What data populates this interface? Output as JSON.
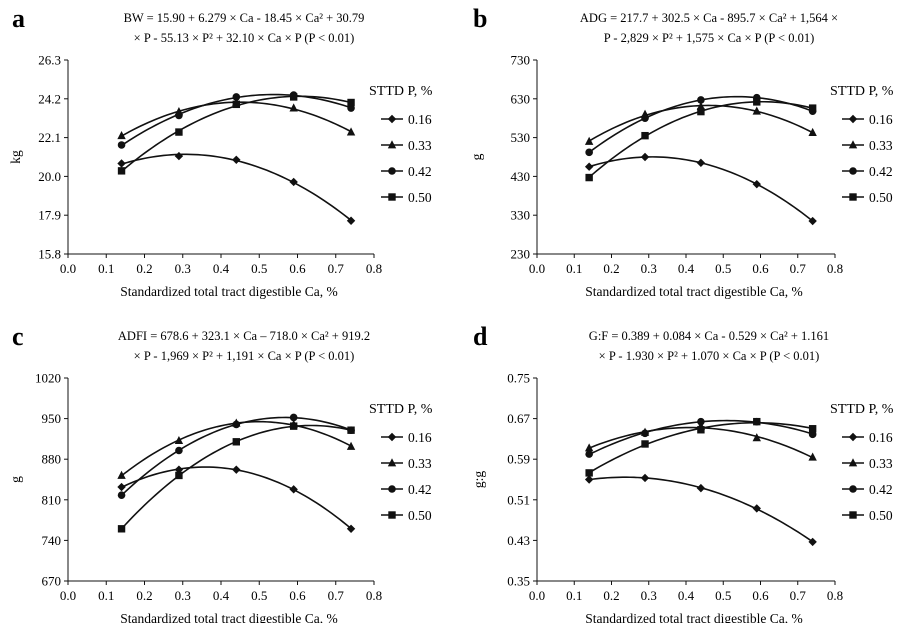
{
  "chart_data": [
    {
      "type": "scatter",
      "panel": "a",
      "equation": {
        "line1": "BW = 15.90 + 6.279 × Ca - 18.45 × Ca² + 30.79",
        "line2": "× P - 55.13 × P² + 32.10 × Ca × P (P < 0.01)"
      },
      "ylabel": "kg",
      "xlabel": "Standardized total tract digestible Ca, %",
      "xlim": [
        0.0,
        0.8
      ],
      "ylim": [
        15.8,
        26.3
      ],
      "xticks": [
        "0.0",
        "0.1",
        "0.2",
        "0.3",
        "0.4",
        "0.5",
        "0.6",
        "0.7",
        "0.8"
      ],
      "yticks": [
        "15.8",
        "17.9",
        "20.0",
        "22.1",
        "24.2",
        "26.3"
      ],
      "legend_title": "STTD P, %",
      "x": [
        0.14,
        0.29,
        0.44,
        0.59,
        0.74
      ],
      "series": [
        {
          "name": "0.16",
          "marker": "diamond",
          "values": [
            20.7,
            21.1,
            20.9,
            19.7,
            17.6
          ]
        },
        {
          "name": "0.33",
          "marker": "triangle",
          "values": [
            22.2,
            23.5,
            24.0,
            23.7,
            22.4
          ]
        },
        {
          "name": "0.42",
          "marker": "circle",
          "values": [
            21.7,
            23.3,
            24.3,
            24.4,
            23.7
          ]
        },
        {
          "name": "0.50",
          "marker": "square",
          "values": [
            20.3,
            22.4,
            23.9,
            24.3,
            24.0
          ]
        }
      ]
    },
    {
      "type": "scatter",
      "panel": "b",
      "equation": {
        "line1": "ADG = 217.7 + 302.5 × Ca - 895.7 × Ca² + 1,564 ×",
        "line2": "P - 2,829 × P² + 1,575 × Ca × P (P < 0.01)"
      },
      "ylabel": "g",
      "xlabel": "Standardized total tract digestible Ca, %",
      "xlim": [
        0.0,
        0.8
      ],
      "ylim": [
        230,
        730
      ],
      "xticks": [
        "0.0",
        "0.1",
        "0.2",
        "0.3",
        "0.4",
        "0.5",
        "0.6",
        "0.7",
        "0.8"
      ],
      "yticks": [
        "230",
        "330",
        "430",
        "530",
        "630",
        "730"
      ],
      "legend_title": "STTD P, %",
      "x": [
        0.14,
        0.29,
        0.44,
        0.59,
        0.74
      ],
      "series": [
        {
          "name": "0.16",
          "marker": "diamond",
          "values": [
            455,
            480,
            465,
            410,
            315
          ]
        },
        {
          "name": "0.33",
          "marker": "triangle",
          "values": [
            520,
            590,
            610,
            598,
            543
          ]
        },
        {
          "name": "0.42",
          "marker": "circle",
          "values": [
            492,
            580,
            627,
            633,
            598
          ]
        },
        {
          "name": "0.50",
          "marker": "square",
          "values": [
            427,
            535,
            597,
            622,
            606
          ]
        }
      ]
    },
    {
      "type": "scatter",
      "panel": "c",
      "equation": {
        "line1": "ADFI = 678.6 + 323.1 × Ca – 718.0 × Ca² + 919.2",
        "line2": "× P - 1,969 × P² + 1,191 × Ca × P (P < 0.01)"
      },
      "ylabel": "g",
      "xlabel": "Standardized total tract digestible Ca, %",
      "xlim": [
        0.0,
        0.8
      ],
      "ylim": [
        670,
        1020
      ],
      "xticks": [
        "0.0",
        "0.1",
        "0.2",
        "0.3",
        "0.4",
        "0.5",
        "0.6",
        "0.7",
        "0.8"
      ],
      "yticks": [
        "670",
        "740",
        "810",
        "880",
        "950",
        "1020"
      ],
      "legend_title": "STTD P, %",
      "x": [
        0.14,
        0.29,
        0.44,
        0.59,
        0.74
      ],
      "series": [
        {
          "name": "0.16",
          "marker": "diamond",
          "values": [
            832,
            862,
            862,
            828,
            760
          ]
        },
        {
          "name": "0.33",
          "marker": "triangle",
          "values": [
            852,
            912,
            942,
            940,
            902
          ]
        },
        {
          "name": "0.42",
          "marker": "circle",
          "values": [
            818,
            895,
            940,
            952,
            930
          ]
        },
        {
          "name": "0.50",
          "marker": "square",
          "values": [
            760,
            852,
            910,
            937,
            930
          ]
        }
      ]
    },
    {
      "type": "scatter",
      "panel": "d",
      "equation": {
        "line1": "G:F = 0.389 + 0.084 × Ca - 0.529 × Ca² + 1.161",
        "line2": "× P - 1.930 × P² + 1.070 × Ca × P (P < 0.01)"
      },
      "ylabel": "g:g",
      "xlabel": "Standardized total tract digestible Ca, %",
      "xlim": [
        0.0,
        0.8
      ],
      "ylim": [
        0.35,
        0.75
      ],
      "xticks": [
        "0.0",
        "0.1",
        "0.2",
        "0.3",
        "0.4",
        "0.5",
        "0.6",
        "0.7",
        "0.8"
      ],
      "yticks": [
        "0.35",
        "0.43",
        "0.51",
        "0.59",
        "0.67",
        "0.75"
      ],
      "legend_title": "STTD P, %",
      "x": [
        0.14,
        0.29,
        0.44,
        0.59,
        0.74
      ],
      "series": [
        {
          "name": "0.16",
          "marker": "diamond",
          "values": [
            0.55,
            0.553,
            0.533,
            0.493,
            0.427
          ]
        },
        {
          "name": "0.33",
          "marker": "triangle",
          "values": [
            0.612,
            0.643,
            0.655,
            0.632,
            0.594
          ]
        },
        {
          "name": "0.42",
          "marker": "circle",
          "values": [
            0.6,
            0.641,
            0.664,
            0.664,
            0.639
          ]
        },
        {
          "name": "0.50",
          "marker": "square",
          "values": [
            0.563,
            0.62,
            0.648,
            0.664,
            0.65
          ]
        }
      ]
    }
  ],
  "colors": {
    "ink": "#111111",
    "background": "#ffffff"
  }
}
